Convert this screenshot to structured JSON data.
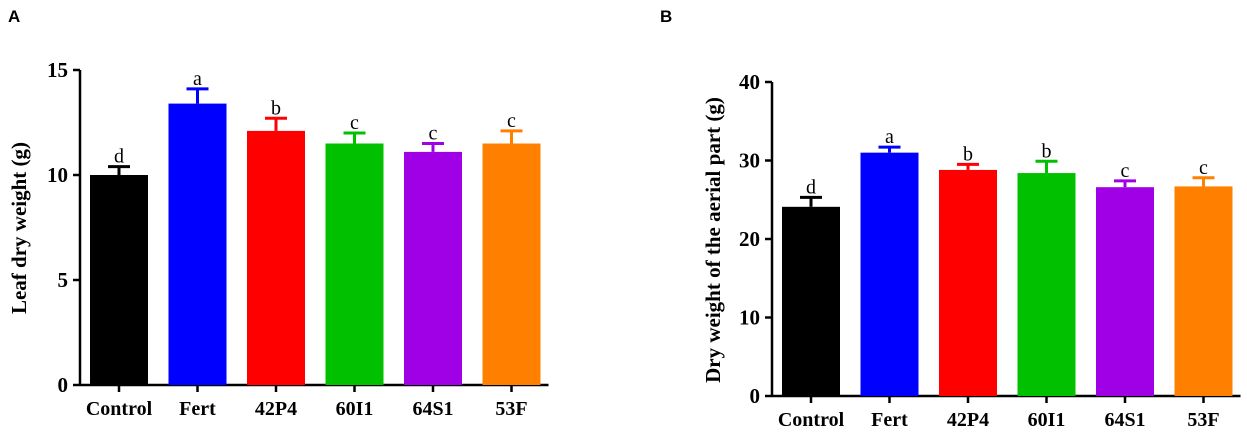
{
  "chart_data": [
    {
      "panel": "A",
      "type": "bar",
      "categories": [
        "Control",
        "Fert",
        "42P4",
        "60I1",
        "64S1",
        "53F"
      ],
      "values": [
        10.0,
        13.4,
        12.1,
        11.5,
        11.1,
        11.5
      ],
      "errors": [
        0.4,
        0.7,
        0.6,
        0.5,
        0.4,
        0.6
      ],
      "letters": [
        "d",
        "a",
        "b",
        "c",
        "c",
        "c"
      ],
      "colors": [
        "#000000",
        "#0000ff",
        "#ff0000",
        "#00c000",
        "#a000e6",
        "#ff8000"
      ],
      "ylabel": "Leaf dry weight (g)",
      "ylim": [
        0,
        15
      ],
      "yticks": [
        "0",
        "5",
        "10",
        "15"
      ]
    },
    {
      "panel": "B",
      "type": "bar",
      "categories": [
        "Control",
        "Fert",
        "42P4",
        "60I1",
        "64S1",
        "53F"
      ],
      "values": [
        24.1,
        31.0,
        28.8,
        28.4,
        26.6,
        26.7
      ],
      "errors": [
        1.2,
        0.7,
        0.7,
        1.5,
        0.8,
        1.1
      ],
      "letters": [
        "d",
        "a",
        "b",
        "b",
        "c",
        "c"
      ],
      "colors": [
        "#000000",
        "#0000ff",
        "#ff0000",
        "#00c000",
        "#a000e6",
        "#ff8000"
      ],
      "ylabel": "Dry weight of the aerial part (g)",
      "ylim": [
        0,
        40
      ],
      "yticks": [
        "0",
        "10",
        "20",
        "30",
        "40"
      ]
    }
  ]
}
